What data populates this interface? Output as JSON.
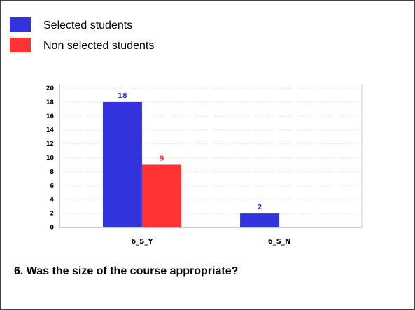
{
  "chart_data": {
    "type": "bar",
    "title": "6. Was the size of the course appropriate?",
    "categories": [
      "6_S_Y",
      "6_S_N"
    ],
    "series": [
      {
        "name": "Selected students",
        "color": "#3333dd",
        "values": [
          18,
          2
        ]
      },
      {
        "name": "Non selected students",
        "color": "#ff3333",
        "values": [
          9,
          0
        ]
      }
    ],
    "ylim": [
      0,
      20
    ],
    "yticks": [
      0,
      2,
      4,
      6,
      8,
      10,
      12,
      14,
      16,
      18,
      20
    ],
    "grid": true,
    "legend": "top-left"
  }
}
